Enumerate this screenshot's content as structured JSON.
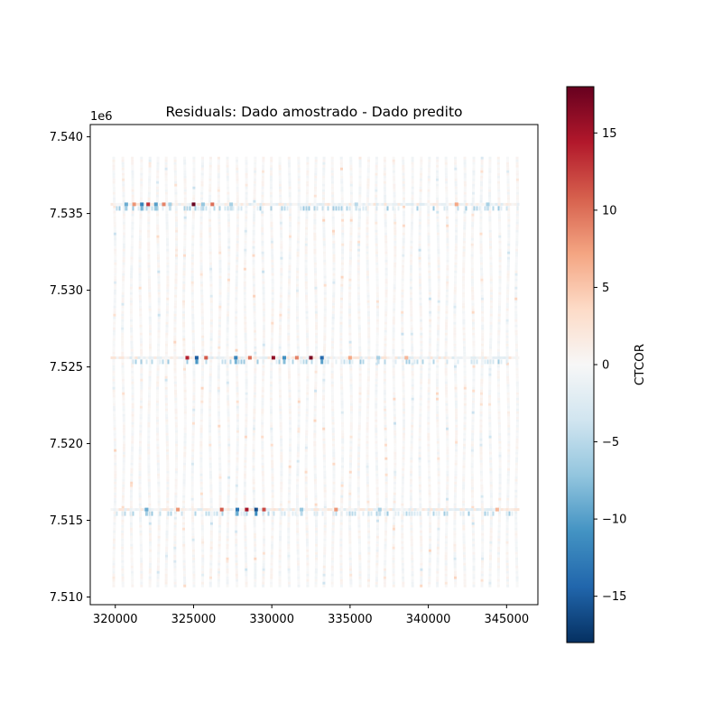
{
  "chart_data": {
    "type": "scatter",
    "title": "Residuals: Dado amostrado - Dado predito",
    "xlabel": "",
    "ylabel": "",
    "x_ticks": [
      320000,
      325000,
      330000,
      335000,
      340000,
      345000
    ],
    "x_tick_labels": [
      "320000",
      "325000",
      "330000",
      "335000",
      "340000",
      "345000"
    ],
    "xlim": [
      318400,
      347000
    ],
    "y_ticks": [
      7.51,
      7.515,
      7.52,
      7.525,
      7.53,
      7.535,
      7.54
    ],
    "y_tick_labels": [
      "7.510",
      "7.515",
      "7.520",
      "7.525",
      "7.530",
      "7.535",
      "7.540"
    ],
    "y_offset_label": "1e6",
    "ylim": [
      7.5095,
      7.5408
    ],
    "grid": false,
    "colorbar": {
      "label": "CTCOR",
      "colormap": "RdBu_r",
      "vmin": -18,
      "vmax": 18,
      "ticks": [
        -15,
        -10,
        -5,
        0,
        5,
        10,
        15
      ],
      "tick_labels": [
        "−15",
        "−10",
        "−5",
        "0",
        "5",
        "10",
        "15"
      ]
    },
    "survey_lines": {
      "x_start": 319950,
      "x_end": 345650,
      "count": 47,
      "y_min": 7.5108,
      "y_max": 7.5387
    },
    "tie_lines": [
      {
        "y": 7.5356,
        "x_range": [
          319700,
          345700
        ]
      },
      {
        "y": 7.5256,
        "x_range": [
          319700,
          345700
        ]
      },
      {
        "y": 7.5157,
        "x_range": [
          319700,
          345700
        ]
      }
    ],
    "strong_residuals": [
      {
        "x": 320700,
        "y": 7.5356,
        "value": -9
      },
      {
        "x": 321200,
        "y": 7.5356,
        "value": 8
      },
      {
        "x": 321700,
        "y": 7.5356,
        "value": -12
      },
      {
        "x": 322100,
        "y": 7.5356,
        "value": 13
      },
      {
        "x": 322600,
        "y": 7.5356,
        "value": -10
      },
      {
        "x": 323100,
        "y": 7.5356,
        "value": 9
      },
      {
        "x": 323500,
        "y": 7.5356,
        "value": -6
      },
      {
        "x": 325000,
        "y": 7.5356,
        "value": 18
      },
      {
        "x": 325600,
        "y": 7.5356,
        "value": -7
      },
      {
        "x": 326200,
        "y": 7.5356,
        "value": 10
      },
      {
        "x": 327400,
        "y": 7.5356,
        "value": -6
      },
      {
        "x": 335400,
        "y": 7.5356,
        "value": -5
      },
      {
        "x": 341800,
        "y": 7.5356,
        "value": 7
      },
      {
        "x": 343800,
        "y": 7.5356,
        "value": -6
      },
      {
        "x": 324600,
        "y": 7.5256,
        "value": 14
      },
      {
        "x": 325200,
        "y": 7.5256,
        "value": -15
      },
      {
        "x": 325800,
        "y": 7.5256,
        "value": 11
      },
      {
        "x": 327700,
        "y": 7.5256,
        "value": -12
      },
      {
        "x": 328600,
        "y": 7.5256,
        "value": 10
      },
      {
        "x": 330100,
        "y": 7.5256,
        "value": 16
      },
      {
        "x": 330800,
        "y": 7.5256,
        "value": -11
      },
      {
        "x": 331600,
        "y": 7.5256,
        "value": 9
      },
      {
        "x": 332500,
        "y": 7.5256,
        "value": 17
      },
      {
        "x": 333200,
        "y": 7.5256,
        "value": -14
      },
      {
        "x": 335000,
        "y": 7.5256,
        "value": 7
      },
      {
        "x": 336800,
        "y": 7.5256,
        "value": -6
      },
      {
        "x": 338600,
        "y": 7.5256,
        "value": 6
      },
      {
        "x": 322000,
        "y": 7.5157,
        "value": -9
      },
      {
        "x": 324000,
        "y": 7.5157,
        "value": 8
      },
      {
        "x": 326800,
        "y": 7.5157,
        "value": 11
      },
      {
        "x": 327800,
        "y": 7.5157,
        "value": -13
      },
      {
        "x": 328400,
        "y": 7.5157,
        "value": 15
      },
      {
        "x": 329000,
        "y": 7.5157,
        "value": -16
      },
      {
        "x": 329500,
        "y": 7.5157,
        "value": 12
      },
      {
        "x": 331900,
        "y": 7.5157,
        "value": -7
      },
      {
        "x": 334100,
        "y": 7.5157,
        "value": 8
      },
      {
        "x": 336900,
        "y": 7.5157,
        "value": -6
      },
      {
        "x": 344400,
        "y": 7.5157,
        "value": 6
      }
    ]
  }
}
